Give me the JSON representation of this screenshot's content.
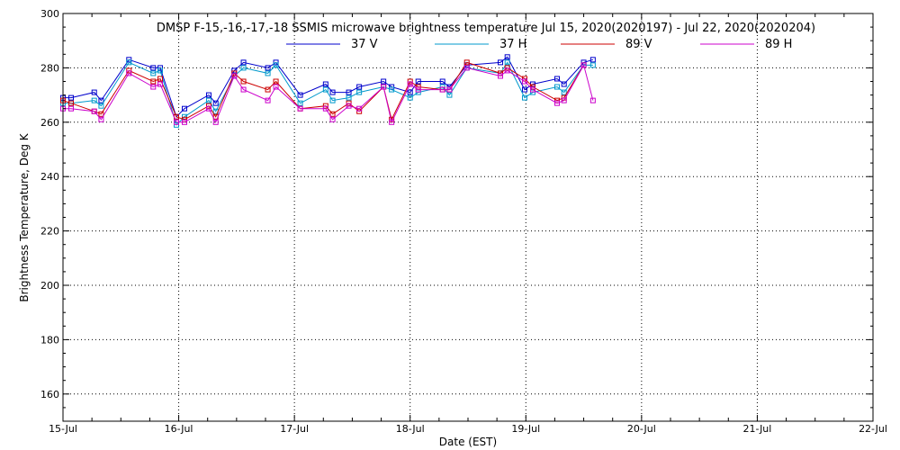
{
  "chart_data": {
    "type": "line",
    "title": "DMSP F-15,-16,-17,-18 SSMIS microwave brightness temperature Jul 15, 2020(2020197) - Jul 22, 2020(2020204)",
    "xlabel": "Date (EST)",
    "ylabel": "Brightness Temperature, Deg K",
    "xlim": [
      0,
      7
    ],
    "ylim": [
      150,
      300
    ],
    "x_ticks": [
      0,
      1,
      2,
      3,
      4,
      5,
      6,
      7
    ],
    "x_tick_labels": [
      "15-Jul",
      "16-Jul",
      "17-Jul",
      "18-Jul",
      "19-Jul",
      "20-Jul",
      "21-Jul",
      "22-Jul"
    ],
    "y_ticks": [
      160,
      180,
      200,
      220,
      240,
      260,
      280,
      300
    ],
    "y_tick_labels": [
      "160",
      "180",
      "200",
      "220",
      "240",
      "260",
      "280",
      "300"
    ],
    "grid": true,
    "legend_position": "top-center",
    "x_units": "days after 15-Jul 00:00 EST",
    "series": [
      {
        "name": "37 V",
        "color": "#0000cc",
        "points": [
          [
            0.0,
            269
          ],
          [
            0.07,
            269
          ],
          [
            0.27,
            271
          ],
          [
            0.33,
            268
          ],
          [
            0.57,
            283
          ],
          [
            0.78,
            280
          ],
          [
            0.84,
            280
          ],
          [
            0.98,
            262
          ],
          [
            1.05,
            265
          ],
          [
            1.26,
            270
          ],
          [
            1.32,
            267
          ],
          [
            1.48,
            279
          ],
          [
            1.56,
            282
          ],
          [
            1.77,
            280
          ],
          [
            1.84,
            282
          ],
          [
            2.05,
            270
          ],
          [
            2.27,
            274
          ],
          [
            2.33,
            271
          ],
          [
            2.47,
            271
          ],
          [
            2.56,
            273
          ],
          [
            2.77,
            275
          ],
          [
            2.84,
            273
          ],
          [
            3.0,
            271
          ],
          [
            3.07,
            275
          ],
          [
            3.28,
            275
          ],
          [
            3.34,
            273
          ],
          [
            3.49,
            281
          ],
          [
            3.78,
            282
          ],
          [
            3.84,
            284
          ],
          [
            3.99,
            272
          ],
          [
            4.06,
            274
          ],
          [
            4.27,
            276
          ],
          [
            4.33,
            274
          ],
          [
            4.5,
            282
          ],
          [
            4.58,
            283
          ]
        ]
      },
      {
        "name": "37 H",
        "color": "#0099cc",
        "points": [
          [
            0.0,
            267
          ],
          [
            0.07,
            267
          ],
          [
            0.27,
            268
          ],
          [
            0.33,
            266
          ],
          [
            0.57,
            282
          ],
          [
            0.78,
            278
          ],
          [
            0.84,
            279
          ],
          [
            0.98,
            259
          ],
          [
            1.05,
            262
          ],
          [
            1.26,
            268
          ],
          [
            1.32,
            264
          ],
          [
            1.48,
            277
          ],
          [
            1.56,
            280
          ],
          [
            1.77,
            278
          ],
          [
            1.84,
            281
          ],
          [
            2.05,
            267
          ],
          [
            2.27,
            272
          ],
          [
            2.33,
            268
          ],
          [
            2.47,
            269
          ],
          [
            2.56,
            271
          ],
          [
            2.77,
            273
          ],
          [
            2.84,
            272
          ],
          [
            3.0,
            269
          ],
          [
            3.07,
            271
          ],
          [
            3.28,
            273
          ],
          [
            3.34,
            270
          ],
          [
            3.49,
            280
          ],
          [
            3.78,
            278
          ],
          [
            3.84,
            282
          ],
          [
            3.99,
            269
          ],
          [
            4.06,
            271
          ],
          [
            4.27,
            273
          ],
          [
            4.33,
            271
          ],
          [
            4.5,
            281
          ],
          [
            4.58,
            281
          ]
        ]
      },
      {
        "name": "89 V",
        "color": "#cc0000",
        "points": [
          [
            0.0,
            268
          ],
          [
            0.07,
            267
          ],
          [
            0.27,
            264
          ],
          [
            0.33,
            263
          ],
          [
            0.57,
            279
          ],
          [
            0.78,
            275
          ],
          [
            0.84,
            276
          ],
          [
            0.98,
            262
          ],
          [
            1.05,
            261
          ],
          [
            1.26,
            266
          ],
          [
            1.32,
            262
          ],
          [
            1.48,
            278
          ],
          [
            1.56,
            275
          ],
          [
            1.77,
            272
          ],
          [
            1.84,
            275
          ],
          [
            2.05,
            265
          ],
          [
            2.27,
            266
          ],
          [
            2.33,
            263
          ],
          [
            2.47,
            267
          ],
          [
            2.56,
            264
          ],
          [
            2.77,
            273
          ],
          [
            2.84,
            261
          ],
          [
            3.0,
            275
          ],
          [
            3.07,
            273
          ],
          [
            3.28,
            272
          ],
          [
            3.34,
            272
          ],
          [
            3.49,
            282
          ],
          [
            3.78,
            278
          ],
          [
            3.84,
            280
          ],
          [
            3.99,
            276
          ],
          [
            4.06,
            273
          ],
          [
            4.27,
            268
          ],
          [
            4.33,
            269
          ],
          [
            4.5,
            281
          ]
        ]
      },
      {
        "name": "89 H",
        "color": "#cc00cc",
        "points": [
          [
            0.0,
            265
          ],
          [
            0.07,
            265
          ],
          [
            0.27,
            264
          ],
          [
            0.33,
            261
          ],
          [
            0.57,
            278
          ],
          [
            0.78,
            273
          ],
          [
            0.84,
            274
          ],
          [
            0.98,
            260
          ],
          [
            1.05,
            260
          ],
          [
            1.26,
            265
          ],
          [
            1.32,
            260
          ],
          [
            1.48,
            277
          ],
          [
            1.56,
            272
          ],
          [
            1.77,
            268
          ],
          [
            1.84,
            273
          ],
          [
            2.05,
            265
          ],
          [
            2.27,
            265
          ],
          [
            2.33,
            261
          ],
          [
            2.47,
            266
          ],
          [
            2.56,
            265
          ],
          [
            2.77,
            273
          ],
          [
            2.84,
            260
          ],
          [
            3.0,
            274
          ],
          [
            3.07,
            272
          ],
          [
            3.28,
            272
          ],
          [
            3.34,
            272
          ],
          [
            3.49,
            280
          ],
          [
            3.78,
            277
          ],
          [
            3.84,
            279
          ],
          [
            3.99,
            275
          ],
          [
            4.06,
            272
          ],
          [
            4.27,
            267
          ],
          [
            4.33,
            268
          ],
          [
            4.5,
            281
          ],
          [
            4.58,
            268
          ]
        ]
      }
    ]
  }
}
